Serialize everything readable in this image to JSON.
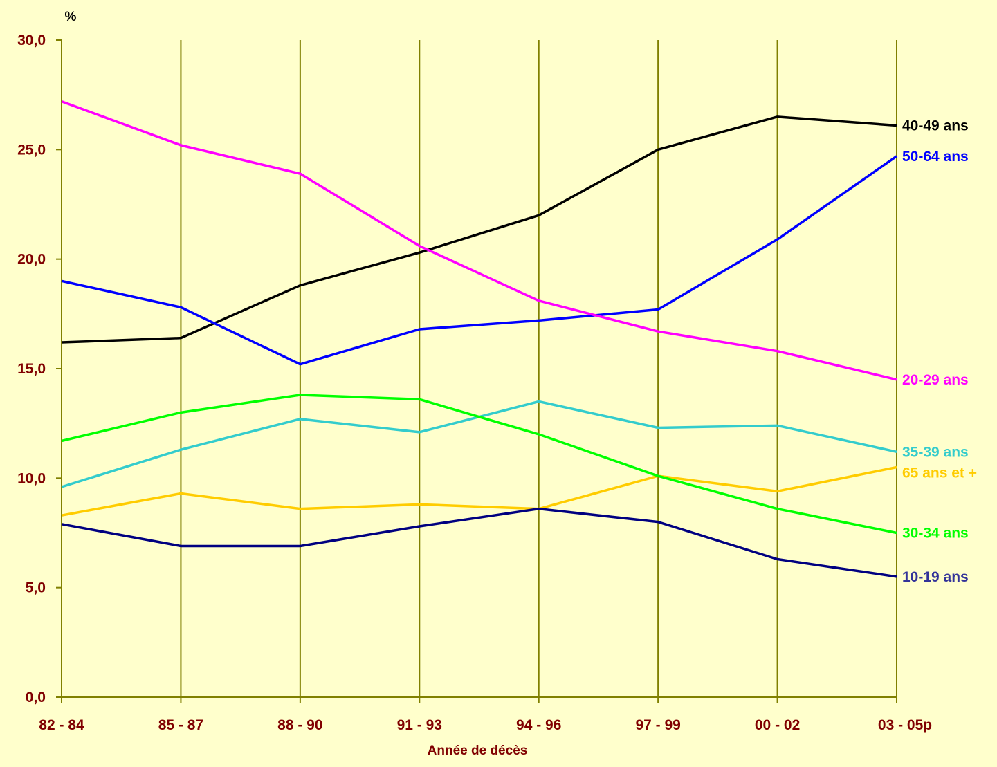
{
  "chart_data": {
    "type": "line",
    "title": "",
    "xlabel": "Année de décès",
    "ylabel": "%",
    "ylim": [
      0,
      30
    ],
    "yticks": [
      "0,0",
      "5,0",
      "10,0",
      "15,0",
      "20,0",
      "25,0",
      "30,0"
    ],
    "grid": "vertical",
    "categories": [
      "82 - 84",
      "85 - 87",
      "88 - 90",
      "91 - 93",
      "94 - 96",
      "97 - 99",
      "00 - 02",
      "03 - 05p"
    ],
    "series": [
      {
        "name": "40-49 ans",
        "color": "#000000",
        "values": [
          16.2,
          16.4,
          18.8,
          20.3,
          22.0,
          25.0,
          26.5,
          26.1
        ]
      },
      {
        "name": "50-64 ans",
        "color": "#0000ff",
        "values": [
          19.0,
          17.8,
          15.2,
          16.8,
          17.2,
          17.7,
          20.9,
          24.7
        ]
      },
      {
        "name": "20-29 ans",
        "color": "#ff00ff",
        "values": [
          27.2,
          25.2,
          23.9,
          20.6,
          18.1,
          16.7,
          15.8,
          14.5
        ]
      },
      {
        "name": "35-39 ans",
        "color": "#33cccc",
        "values": [
          9.6,
          11.3,
          12.7,
          12.1,
          13.5,
          12.3,
          12.4,
          11.2
        ]
      },
      {
        "name": "65 ans et +",
        "color": "#ffcc00",
        "values": [
          8.3,
          9.3,
          8.6,
          8.8,
          8.6,
          10.1,
          9.4,
          10.5
        ]
      },
      {
        "name": "30-34 ans",
        "color": "#00ff00",
        "values": [
          11.7,
          13.0,
          13.8,
          13.6,
          12.0,
          10.1,
          8.6,
          7.5
        ]
      },
      {
        "name": "10-19 ans",
        "color": "#000080",
        "labelColor": "#333399",
        "values": [
          7.9,
          6.9,
          6.9,
          7.8,
          8.6,
          8.0,
          6.3,
          5.5
        ]
      }
    ]
  }
}
